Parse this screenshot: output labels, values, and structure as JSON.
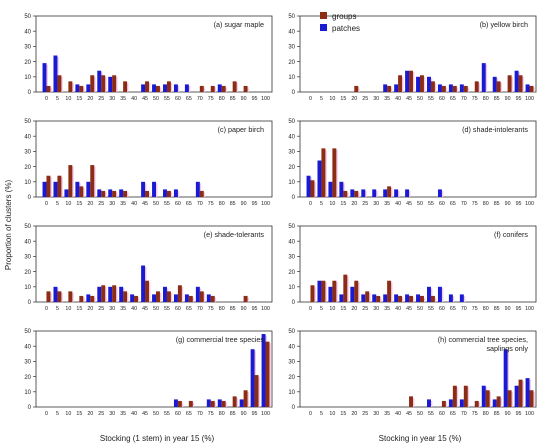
{
  "figure": {
    "ylabel": "Proportion of clusters (%)",
    "xlabel_left": "Stocking (1 stem) in year 15 (%)",
    "xlabel_right": "Stocking in year 15 (%)"
  },
  "legend": {
    "groups": "groups",
    "patches": "patches"
  },
  "colors": {
    "groups": "#8b2c14",
    "patches": "#1a1ad2",
    "shadow": "#f4c8e8",
    "axis": "#333333"
  },
  "chart_data": [
    {
      "type": "bar",
      "title": "(a) sugar maple",
      "categories": [
        "0",
        "5",
        "10",
        "15",
        "20",
        "25",
        "30",
        "35",
        "40",
        "45",
        "50",
        "55",
        "60",
        "65",
        "70",
        "75",
        "80",
        "85",
        "90",
        "95",
        "100"
      ],
      "ylim": [
        0,
        50
      ],
      "yticks": [
        0,
        10,
        20,
        30,
        40,
        50
      ],
      "series": [
        {
          "name": "groups",
          "values": [
            4,
            11,
            7,
            4,
            11,
            11,
            11,
            7,
            0,
            7,
            4,
            7,
            0,
            0,
            4,
            4,
            4,
            7,
            4,
            0,
            0
          ]
        },
        {
          "name": "patches",
          "values": [
            19,
            24,
            0,
            5,
            5,
            14,
            10,
            0,
            0,
            5,
            5,
            5,
            5,
            5,
            0,
            0,
            5,
            0,
            0,
            0,
            0
          ]
        }
      ]
    },
    {
      "type": "bar",
      "title": "(b) yellow birch",
      "categories": [
        "0",
        "5",
        "10",
        "15",
        "20",
        "25",
        "30",
        "35",
        "40",
        "45",
        "50",
        "55",
        "60",
        "65",
        "70",
        "75",
        "80",
        "85",
        "90",
        "95",
        "100"
      ],
      "ylim": [
        0,
        50
      ],
      "yticks": [
        0,
        10,
        20,
        30,
        40,
        50
      ],
      "series": [
        {
          "name": "groups",
          "values": [
            0,
            0,
            0,
            0,
            4,
            0,
            0,
            4,
            11,
            14,
            11,
            7,
            4,
            4,
            4,
            7,
            0,
            7,
            11,
            11,
            4
          ]
        },
        {
          "name": "patches",
          "values": [
            0,
            0,
            0,
            0,
            0,
            0,
            0,
            5,
            5,
            14,
            10,
            10,
            5,
            5,
            5,
            0,
            19,
            10,
            0,
            14,
            5
          ]
        }
      ]
    },
    {
      "type": "bar",
      "title": "(c) paper birch",
      "categories": [
        "0",
        "5",
        "10",
        "15",
        "20",
        "25",
        "30",
        "35",
        "40",
        "45",
        "50",
        "55",
        "60",
        "65",
        "70",
        "75",
        "80",
        "85",
        "90",
        "95",
        "100"
      ],
      "ylim": [
        0,
        50
      ],
      "yticks": [
        0,
        10,
        20,
        30,
        40,
        50
      ],
      "series": [
        {
          "name": "groups",
          "values": [
            14,
            14,
            21,
            7,
            21,
            4,
            4,
            4,
            0,
            4,
            0,
            4,
            0,
            0,
            4,
            0,
            0,
            0,
            0,
            0,
            0
          ]
        },
        {
          "name": "patches",
          "values": [
            10,
            10,
            5,
            10,
            10,
            5,
            5,
            5,
            0,
            10,
            10,
            5,
            5,
            0,
            10,
            0,
            0,
            0,
            0,
            0,
            0
          ]
        }
      ]
    },
    {
      "type": "bar",
      "title": "(d) shade-intolerants",
      "categories": [
        "0",
        "5",
        "10",
        "15",
        "20",
        "25",
        "30",
        "35",
        "40",
        "45",
        "50",
        "55",
        "60",
        "65",
        "70",
        "75",
        "80",
        "85",
        "90",
        "95",
        "100"
      ],
      "ylim": [
        0,
        50
      ],
      "yticks": [
        0,
        10,
        20,
        30,
        40,
        50
      ],
      "series": [
        {
          "name": "groups",
          "values": [
            11,
            32,
            32,
            4,
            4,
            0,
            0,
            7,
            0,
            0,
            0,
            0,
            0,
            0,
            0,
            0,
            0,
            0,
            0,
            0,
            0
          ]
        },
        {
          "name": "patches",
          "values": [
            14,
            24,
            10,
            10,
            5,
            5,
            5,
            5,
            5,
            5,
            0,
            0,
            5,
            0,
            0,
            0,
            0,
            0,
            0,
            0,
            0
          ]
        }
      ]
    },
    {
      "type": "bar",
      "title": "(e) shade-tolerants",
      "categories": [
        "0",
        "5",
        "10",
        "15",
        "20",
        "25",
        "30",
        "35",
        "40",
        "45",
        "50",
        "55",
        "60",
        "65",
        "70",
        "75",
        "80",
        "85",
        "90",
        "95",
        "100"
      ],
      "ylim": [
        0,
        50
      ],
      "yticks": [
        0,
        10,
        20,
        30,
        40,
        50
      ],
      "series": [
        {
          "name": "groups",
          "values": [
            7,
            7,
            7,
            4,
            4,
            11,
            11,
            7,
            4,
            14,
            7,
            7,
            11,
            4,
            7,
            4,
            0,
            0,
            4,
            0,
            0
          ]
        },
        {
          "name": "patches",
          "values": [
            0,
            10,
            0,
            0,
            5,
            10,
            10,
            10,
            5,
            24,
            5,
            10,
            5,
            5,
            10,
            5,
            0,
            0,
            0,
            0,
            0
          ]
        }
      ]
    },
    {
      "type": "bar",
      "title": "(f) conifers",
      "categories": [
        "0",
        "5",
        "10",
        "15",
        "20",
        "25",
        "30",
        "35",
        "40",
        "45",
        "50",
        "55",
        "60",
        "65",
        "70",
        "75",
        "80",
        "85",
        "90",
        "95",
        "100"
      ],
      "ylim": [
        0,
        50
      ],
      "yticks": [
        0,
        10,
        20,
        30,
        40,
        50
      ],
      "series": [
        {
          "name": "groups",
          "values": [
            11,
            14,
            14,
            18,
            14,
            7,
            4,
            14,
            4,
            4,
            4,
            4,
            0,
            0,
            0,
            0,
            0,
            0,
            0,
            0,
            0
          ]
        },
        {
          "name": "patches",
          "values": [
            0,
            14,
            10,
            5,
            10,
            5,
            5,
            5,
            5,
            5,
            5,
            10,
            10,
            5,
            5,
            0,
            0,
            0,
            0,
            0,
            0
          ]
        }
      ]
    },
    {
      "type": "bar",
      "title": "(g) commercial tree species",
      "categories": [
        "0",
        "5",
        "10",
        "15",
        "20",
        "25",
        "30",
        "35",
        "40",
        "45",
        "50",
        "55",
        "60",
        "65",
        "70",
        "75",
        "80",
        "85",
        "90",
        "95",
        "100"
      ],
      "ylim": [
        0,
        50
      ],
      "yticks": [
        0,
        10,
        20,
        30,
        40,
        50
      ],
      "series": [
        {
          "name": "groups",
          "values": [
            0,
            0,
            0,
            0,
            0,
            0,
            0,
            0,
            0,
            0,
            0,
            0,
            4,
            4,
            0,
            4,
            4,
            7,
            11,
            21,
            43
          ]
        },
        {
          "name": "patches",
          "values": [
            0,
            0,
            0,
            0,
            0,
            0,
            0,
            0,
            0,
            0,
            0,
            0,
            5,
            0,
            0,
            5,
            5,
            0,
            5,
            38,
            48
          ]
        }
      ]
    },
    {
      "type": "bar",
      "title": "(h) commercial tree species, saplings only",
      "title_lines": [
        "(h) commercial tree species,",
        "saplings only"
      ],
      "categories": [
        "0",
        "5",
        "10",
        "15",
        "20",
        "25",
        "30",
        "35",
        "40",
        "45",
        "50",
        "55",
        "60",
        "65",
        "70",
        "75",
        "80",
        "85",
        "90",
        "95",
        "100"
      ],
      "ylim": [
        0,
        50
      ],
      "yticks": [
        0,
        10,
        20,
        30,
        40,
        50
      ],
      "series": [
        {
          "name": "groups",
          "values": [
            0,
            0,
            0,
            0,
            0,
            0,
            0,
            0,
            0,
            7,
            0,
            0,
            4,
            14,
            14,
            4,
            11,
            7,
            11,
            18,
            11
          ]
        },
        {
          "name": "patches",
          "values": [
            0,
            0,
            0,
            0,
            0,
            0,
            0,
            0,
            0,
            0,
            0,
            5,
            0,
            5,
            5,
            0,
            14,
            5,
            38,
            14,
            19
          ]
        }
      ]
    }
  ]
}
